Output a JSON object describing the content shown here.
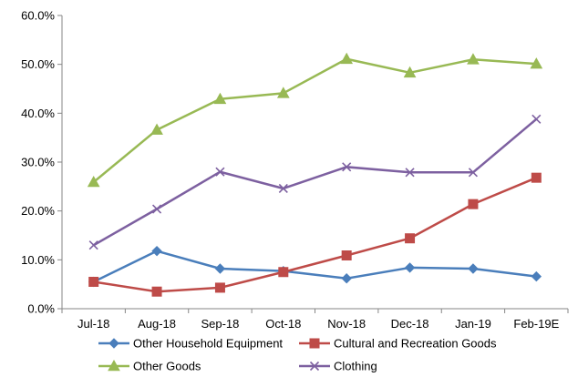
{
  "chart_data": {
    "type": "line",
    "title": "",
    "xlabel": "",
    "ylabel": "",
    "categories": [
      "Jul-18",
      "Aug-18",
      "Sep-18",
      "Oct-18",
      "Nov-18",
      "Dec-18",
      "Jan-19",
      "Feb-19E"
    ],
    "y_ticks": [
      "0.0%",
      "10.0%",
      "20.0%",
      "30.0%",
      "40.0%",
      "50.0%",
      "60.0%"
    ],
    "ylim": [
      0,
      60
    ],
    "y_unit": "percent",
    "grid": false,
    "legend_position": "bottom",
    "series": [
      {
        "name": "Other Household Equipment",
        "color": "#4a7ebb",
        "marker": "diamond",
        "values": [
          5.5,
          11.8,
          8.2,
          7.7,
          6.2,
          8.4,
          8.2,
          6.6
        ]
      },
      {
        "name": "Cultural and Recreation Goods",
        "color": "#be4b48",
        "marker": "square",
        "values": [
          5.5,
          3.5,
          4.3,
          7.5,
          10.9,
          14.4,
          21.4,
          26.8
        ]
      },
      {
        "name": "Other Goods",
        "color": "#98b954",
        "marker": "triangle",
        "values": [
          25.9,
          36.6,
          42.9,
          44.1,
          51.1,
          48.3,
          51.0,
          50.1
        ]
      },
      {
        "name": "Clothing",
        "color": "#7d60a0",
        "marker": "x",
        "values": [
          13.0,
          20.4,
          28.0,
          24.6,
          29.0,
          27.9,
          27.9,
          38.8
        ]
      }
    ]
  }
}
